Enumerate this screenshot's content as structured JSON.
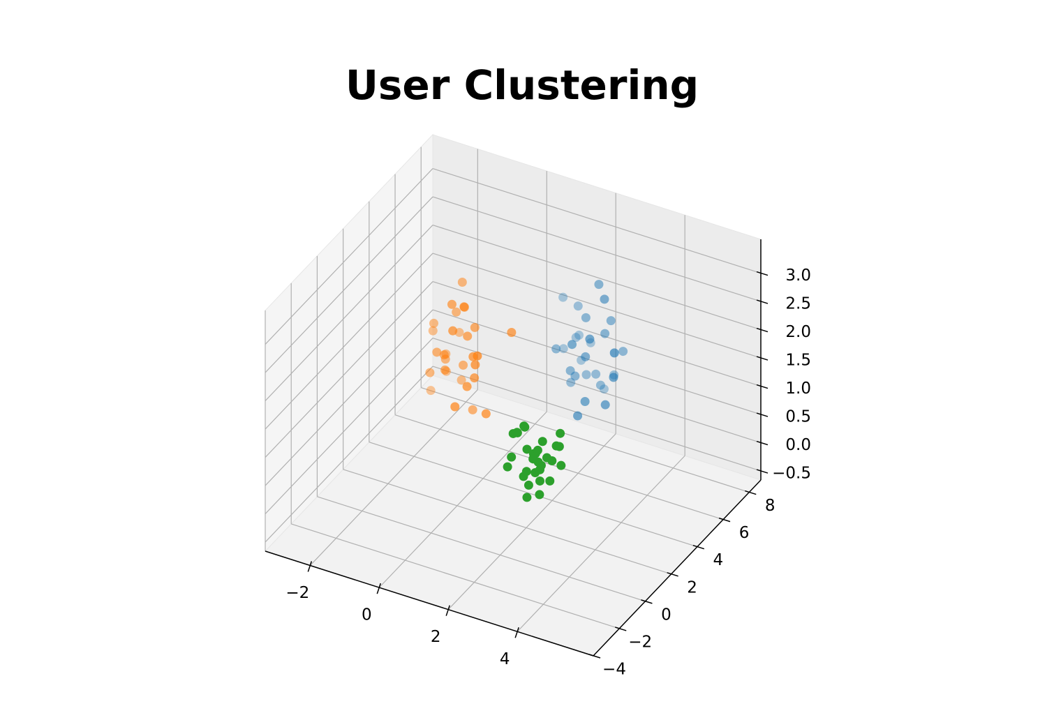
{
  "chart_data": {
    "type": "scatter3d",
    "title": "User Clustering",
    "xlim": [
      -3.3,
      6.2
    ],
    "ylim": [
      -4,
      8.9
    ],
    "zlim": [
      -0.66,
      3.6
    ],
    "xticks": [
      {
        "value": -2,
        "label": "−2"
      },
      0,
      2,
      4
    ],
    "yticks": [
      {
        "value": -4,
        "label": "−4"
      },
      {
        "value": -2,
        "label": "−2"
      },
      0,
      2,
      4,
      6,
      8
    ],
    "zticks": [
      {
        "value": -0.5,
        "label": "−0.5"
      },
      {
        "value": 0,
        "label": "0.0"
      },
      0.5,
      {
        "value": 1,
        "label": "1.0"
      },
      1.5,
      {
        "value": 2,
        "label": "2.0"
      },
      2.5,
      {
        "value": 3,
        "label": "3.0"
      }
    ],
    "grid": true,
    "series": [
      {
        "color": "#1f77b4",
        "x": [
          2.1,
          2.8,
          1.9,
          2.5,
          3.0,
          1.6,
          2.4,
          2.2,
          2.9,
          1.8,
          2.6,
          2.0,
          2.7,
          2.3,
          1.5,
          3.2,
          2.4,
          1.9,
          2.6,
          2.1,
          2.8,
          2.2,
          1.7,
          2.5,
          3.1,
          2.0,
          2.4,
          2.7,
          1.9,
          2.3
        ],
        "y": [
          5.5,
          6.4,
          6.1,
          5.2,
          6.8,
          5.9,
          6.3,
          5.0,
          5.7,
          6.6,
          6.0,
          5.4,
          6.9,
          5.8,
          6.2,
          5.6,
          4.9,
          6.5,
          5.3,
          6.7,
          5.9,
          6.1,
          5.1,
          6.4,
          5.8,
          6.0,
          5.5,
          6.2,
          5.7,
          7.2
        ],
        "z": [
          1.2,
          2.1,
          1.7,
          0.9,
          1.5,
          2.4,
          1.1,
          1.9,
          0.8,
          1.6,
          2.8,
          1.3,
          1.0,
          2.2,
          1.4,
          1.8,
          0.7,
          1.2,
          2.0,
          1.5,
          2.6,
          1.1,
          1.7,
          0.9,
          1.3,
          2.3,
          1.6,
          1.9,
          1.0,
          0.6
        ]
      },
      {
        "color": "#ff7f0e",
        "x": [
          -0.3,
          0.4,
          -0.6,
          0.2,
          -0.1,
          0.7,
          -0.4,
          0.1,
          -0.8,
          0.5,
          0.0,
          -0.2,
          0.3,
          -0.5,
          0.6,
          -0.1,
          0.2,
          -0.7,
          0.4,
          0.1,
          -0.3,
          0.8,
          -0.2,
          0.0,
          0.5,
          -0.6,
          0.3,
          -0.4,
          0.1,
          1.2
        ],
        "y": [
          1.8,
          2.3,
          1.5,
          2.0,
          2.6,
          1.7,
          2.2,
          1.4,
          2.1,
          1.9,
          2.4,
          1.6,
          2.0,
          2.5,
          1.8,
          2.2,
          1.3,
          2.0,
          1.7,
          2.3,
          1.9,
          2.1,
          2.7,
          1.6,
          2.0,
          1.8,
          2.4,
          1.5,
          2.2,
          3.0
        ],
        "z": [
          2.0,
          2.5,
          1.7,
          2.9,
          1.4,
          2.2,
          1.9,
          2.6,
          1.2,
          2.1,
          3.2,
          1.8,
          2.4,
          1.5,
          2.0,
          2.7,
          1.3,
          2.3,
          1.6,
          2.8,
          1.9,
          1.1,
          2.2,
          3.0,
          1.7,
          2.5,
          1.0,
          2.1,
          1.8,
          2.4
        ]
      },
      {
        "color": "#2ca02c",
        "x": [
          2.7,
          3.3,
          2.5,
          3.1,
          2.9,
          3.6,
          2.4,
          3.0,
          3.4,
          2.6,
          3.2,
          2.8,
          3.5,
          2.3,
          3.0,
          3.7,
          2.7,
          3.1,
          2.9,
          3.3,
          2.5,
          3.0,
          3.8,
          2.6,
          3.2,
          2.8,
          3.4,
          2.4,
          3.1,
          2.9
        ],
        "y": [
          0.2,
          -0.4,
          0.5,
          0.0,
          -0.2,
          0.3,
          -0.5,
          0.6,
          0.1,
          -0.3,
          0.4,
          -0.1,
          0.0,
          0.2,
          -0.6,
          0.1,
          0.7,
          -0.2,
          0.3,
          -0.4,
          0.0,
          0.5,
          -0.1,
          0.2,
          -0.3,
          0.4,
          0.6,
          -0.2,
          0.1,
          -0.5
        ],
        "z": [
          1.3,
          1.0,
          1.6,
          1.2,
          0.8,
          1.5,
          1.1,
          1.4,
          0.9,
          1.7,
          1.2,
          1.0,
          1.3,
          1.5,
          0.7,
          1.8,
          1.1,
          1.4,
          0.9,
          1.2,
          1.6,
          1.0,
          1.3,
          0.8,
          1.5,
          1.1,
          1.4,
          1.2,
          0.6,
          1.9
        ]
      }
    ]
  }
}
